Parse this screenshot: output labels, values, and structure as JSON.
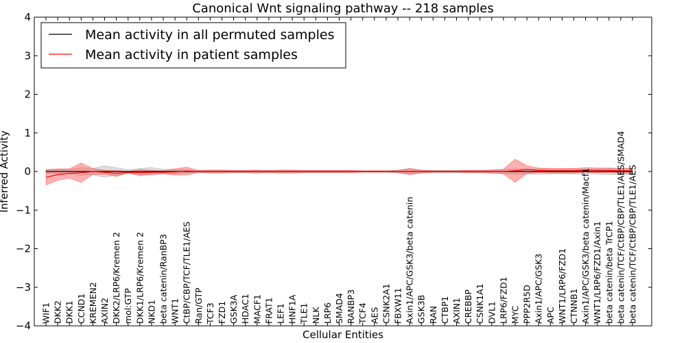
{
  "chart_data": {
    "type": "line",
    "title": "Canonical Wnt signaling pathway -- 218 samples",
    "xlabel": "Cellular Entities",
    "ylabel": "Inferred Activity",
    "ylim": [
      -4,
      4
    ],
    "yticks": [
      "4",
      "3",
      "2",
      "1",
      "0",
      "−1",
      "−2",
      "−3",
      "−4"
    ],
    "ytick_values": [
      4,
      3,
      2,
      1,
      0,
      -1,
      -2,
      -3,
      -4
    ],
    "legend_placement": "top-left",
    "categories": [
      "WIF1",
      "DKK2",
      "DKK1",
      "CCND1",
      "KREMEN2",
      "AXIN2",
      "DKK2/LRP6/Kremen 2",
      "mol:GTP",
      "DKK1/LRP6/Kremen 2",
      "NKD1",
      "beta catenin/RanBP3",
      "WNT1",
      "CtBP/CBP/TCF/TLE1/AES",
      "Ran/GTP",
      "TCF3",
      "FZD1",
      "GSK3A",
      "HDAC1",
      "MACF1",
      "FRAT1",
      "LEF1",
      "HNF1A",
      "TLE1",
      "NLK",
      "LRP6",
      "SMAD4",
      "RANBP3",
      "TCF4",
      "AES",
      "CSNK2A1",
      "FBXW11",
      "Axin1/APC/GSK3/beta catenin",
      "GSK3B",
      "RAN",
      "CTBP1",
      "AXIN1",
      "CREBBP",
      "CSNK1A1",
      "DVL1",
      "LRP6/FZD1",
      "MYC",
      "PPP2R5D",
      "Axin1/APC/GSK3",
      "APC",
      "WNT1/LRP6/FZD1",
      "CTNNB1",
      "Axin1/APC/GSK3/beta catenin/Macf1",
      "WNT1/LRP6/FZD1/Axin1",
      "beta catenin/beta TrCP1",
      "beta catenin/TCF/CtBP/CBP/TLE1/AES/SMAD4",
      "beta catenin/TCF/CtBP/CBP/TLE1/AES"
    ],
    "series": [
      {
        "name": "Mean activity in all permuted samples",
        "color": "#000000",
        "band_color": "#a0a0a0",
        "values": [
          0,
          0,
          0,
          0,
          0,
          0,
          0,
          0,
          0,
          0,
          0,
          0,
          0,
          0,
          0,
          0,
          0,
          0,
          0,
          0,
          0,
          0,
          0,
          0,
          0,
          0,
          0,
          0,
          0,
          0,
          0,
          0,
          0,
          0,
          0,
          0,
          0,
          0,
          0,
          0,
          0,
          0,
          0,
          0,
          0,
          0,
          0,
          0,
          0,
          0,
          0
        ],
        "band_halfwidth": [
          0.05,
          0.05,
          0.06,
          0.1,
          0.08,
          0.15,
          0.1,
          0.04,
          0.08,
          0.1,
          0.06,
          0.05,
          0.04,
          0.02,
          0.02,
          0.02,
          0.02,
          0.02,
          0.02,
          0.02,
          0.02,
          0.02,
          0.02,
          0.02,
          0.02,
          0.02,
          0.02,
          0.02,
          0.02,
          0.02,
          0.04,
          0.08,
          0.03,
          0.03,
          0.03,
          0.03,
          0.03,
          0.03,
          0.04,
          0.05,
          0.07,
          0.07,
          0.07,
          0.07,
          0.06,
          0.07,
          0.06,
          0.07,
          0.08,
          0.08,
          0.08
        ]
      },
      {
        "name": "Mean activity in patient samples",
        "color": "#ff0000",
        "band_color": "#ff5050",
        "values": [
          -0.15,
          -0.08,
          -0.05,
          -0.03,
          0.0,
          -0.02,
          -0.05,
          -0.02,
          -0.03,
          -0.02,
          -0.02,
          -0.01,
          0.01,
          0.0,
          0.0,
          0.0,
          0.0,
          0.0,
          0.0,
          0.0,
          0.0,
          0.0,
          0.0,
          0.0,
          0.0,
          0.0,
          0.0,
          0.0,
          0.0,
          0.0,
          0.0,
          0.0,
          0.0,
          0.0,
          0.0,
          0.0,
          0.0,
          0.0,
          0.0,
          0.0,
          0.02,
          0.05,
          0.03,
          0.02,
          0.02,
          0.02,
          0.04,
          0.03,
          0.03,
          0.02,
          0.02
        ],
        "band_halfwidth": [
          0.2,
          0.15,
          0.12,
          0.25,
          0.08,
          0.05,
          0.08,
          0.02,
          0.08,
          0.05,
          0.04,
          0.08,
          0.1,
          0.03,
          0.04,
          0.04,
          0.03,
          0.03,
          0.04,
          0.03,
          0.04,
          0.04,
          0.03,
          0.03,
          0.03,
          0.03,
          0.03,
          0.02,
          0.02,
          0.02,
          0.02,
          0.08,
          0.04,
          0.02,
          0.02,
          0.02,
          0.03,
          0.03,
          0.04,
          0.06,
          0.3,
          0.1,
          0.06,
          0.06,
          0.06,
          0.06,
          0.06,
          0.06,
          0.06,
          0.06,
          0.06
        ]
      }
    ]
  }
}
